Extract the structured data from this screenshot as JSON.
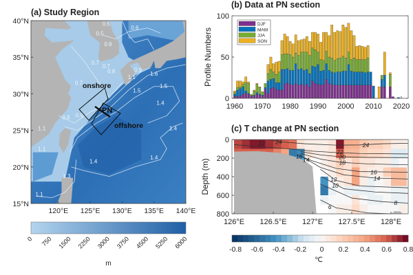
{
  "panel_a": {
    "title": "(a) Study Region",
    "lat_ticks": [
      "40°N",
      "35°N",
      "30°N",
      "25°N",
      "20°N",
      "15°N"
    ],
    "lon_ticks": [
      "120°E",
      "125°E",
      "130°E",
      "135°E",
      "140°E"
    ],
    "labels": {
      "onshore": "onshore",
      "offshore": "offshore",
      "section": "PN"
    },
    "contour_labels": [
      "0.5",
      "0.5",
      "0.6",
      "0.7",
      "0.6",
      "0.7",
      "0.8",
      "0.7",
      "0.9",
      "1.1",
      "1.6",
      "1.5",
      "1.5",
      "1.4",
      "1.4",
      "1.4",
      "1.4",
      "0.9",
      "0.9",
      "1.1",
      "1.1",
      "1.3",
      "1.1"
    ],
    "colorbar": {
      "ticks": [
        "0",
        "750",
        "1500",
        "2250",
        "3000",
        "3750",
        "4500",
        "5250",
        "6000"
      ],
      "unit": "m",
      "range": [
        0,
        6000
      ]
    },
    "colors": {
      "land": "#b4b4b4",
      "shallow": "#b3d4ee",
      "deep": "#1f5fa6"
    }
  },
  "chart_data": [
    {
      "type": "bar",
      "stacked": true,
      "title": "(b) Data at PN section",
      "xlabel": "",
      "ylabel": "Profile Numbers",
      "xlim": [
        1959,
        2022
      ],
      "ylim": [
        0,
        100
      ],
      "x_ticks": [
        "1960",
        "1970",
        "1980",
        "1990",
        "2000",
        "2010",
        "2020"
      ],
      "y_ticks": [
        "0",
        "50",
        "100"
      ],
      "legend_placement": "top-left",
      "categories": [
        1960,
        1961,
        1962,
        1963,
        1964,
        1965,
        1966,
        1967,
        1968,
        1969,
        1970,
        1971,
        1972,
        1973,
        1974,
        1975,
        1976,
        1977,
        1978,
        1979,
        1980,
        1981,
        1982,
        1983,
        1984,
        1985,
        1986,
        1987,
        1988,
        1989,
        1990,
        1991,
        1992,
        1993,
        1994,
        1995,
        1996,
        1997,
        1998,
        1999,
        2000,
        2001,
        2002,
        2003,
        2004,
        2005,
        2006,
        2007,
        2008,
        2009,
        2010,
        2011,
        2012,
        2013,
        2014,
        2015,
        2016,
        2017,
        2018,
        2019
      ],
      "series": [
        {
          "name": "DJF",
          "color": "#7e2f8e",
          "values": [
            3,
            2,
            3,
            5,
            6,
            5,
            2,
            3,
            5,
            4,
            3,
            11,
            6,
            12,
            13,
            11,
            10,
            10,
            17,
            19,
            17,
            16,
            18,
            16,
            17,
            16,
            17,
            14,
            21,
            18,
            17,
            16,
            17,
            23,
            18,
            17,
            16,
            16,
            16,
            16,
            16,
            16,
            16,
            16,
            16,
            16,
            16,
            16,
            16,
            16,
            0,
            0,
            0,
            14,
            14,
            0,
            14,
            2,
            0,
            0
          ]
        },
        {
          "name": "MAM",
          "color": "#0072bd",
          "values": [
            2,
            8,
            9,
            9,
            3,
            1,
            1,
            1,
            2,
            1,
            1,
            2,
            15,
            11,
            11,
            8,
            9,
            25,
            18,
            17,
            17,
            18,
            24,
            19,
            19,
            18,
            18,
            16,
            18,
            20,
            24,
            17,
            17,
            19,
            16,
            15,
            15,
            16,
            16,
            17,
            17,
            25,
            17,
            16,
            16,
            16,
            16,
            15,
            16,
            16,
            15,
            0,
            0,
            9,
            14,
            0,
            0,
            0,
            0,
            1
          ]
        },
        {
          "name": "JJA",
          "color": "#77ac30",
          "values": [
            2,
            3,
            2,
            3,
            10,
            12,
            1,
            5,
            10,
            8,
            4,
            5,
            9,
            12,
            8,
            10,
            13,
            18,
            19,
            18,
            19,
            16,
            13,
            17,
            20,
            22,
            21,
            22,
            22,
            21,
            15,
            14,
            12,
            15,
            16,
            17,
            15,
            16,
            17,
            18,
            16,
            15,
            14,
            17,
            15,
            15,
            15,
            16,
            17,
            0,
            0,
            0,
            0,
            5,
            0,
            0,
            15,
            0,
            0,
            0
          ]
        },
        {
          "name": "SON",
          "color": "#edb120",
          "values": [
            2,
            8,
            7,
            3,
            7,
            2,
            1,
            1,
            1,
            1,
            0,
            0,
            11,
            15,
            10,
            15,
            13,
            17,
            24,
            21,
            16,
            16,
            22,
            18,
            15,
            16,
            19,
            17,
            19,
            21,
            22,
            21,
            34,
            23,
            26,
            40,
            34,
            34,
            32,
            38,
            37,
            35,
            35,
            27,
            16,
            17,
            16,
            15,
            15,
            0,
            0,
            0,
            14,
            0,
            28,
            0,
            2,
            0,
            0,
            0
          ]
        }
      ]
    },
    {
      "type": "heatmap",
      "title": "(c) T change at PN section",
      "xlabel": "",
      "ylabel": "Depth (m)",
      "xlim": [
        126,
        128.22
      ],
      "ylim": [
        800,
        0
      ],
      "x_ticks": [
        "126°E",
        "126.5°E",
        "127°E",
        "127.5°E",
        "128°E"
      ],
      "y_ticks": [
        "0",
        "200",
        "400",
        "600",
        "800"
      ],
      "lon_centers": [
        126.05,
        126.15,
        126.25,
        126.35,
        126.45,
        126.55,
        126.65,
        126.75,
        126.85,
        126.95,
        127.05,
        127.15,
        127.25,
        127.35,
        127.45,
        127.55,
        127.65,
        127.75,
        127.85,
        127.95,
        128.05,
        128.15
      ],
      "depth_bins": [
        [
          0,
          100
        ],
        [
          100,
          200
        ],
        [
          200,
          300
        ],
        [
          300,
          400
        ],
        [
          400,
          500
        ],
        [
          500,
          600
        ],
        [
          600,
          700
        ],
        [
          700,
          800
        ]
      ],
      "values": [
        [
          0.65,
          0.7,
          0.75,
          0.75,
          0.7,
          0.65,
          0.6,
          0.55,
          0.1,
          0.05,
          0.05,
          0.05,
          0.1,
          0.75,
          0.35,
          0.35,
          0.25,
          0.2,
          0.2,
          0.15,
          0.05,
          0.05
        ],
        [
          0.6,
          0.6,
          0.6,
          0.6,
          0.6,
          0.5,
          0.4,
          -0.5,
          -0.45,
          0.1,
          0.05,
          0.05,
          0.1,
          0.6,
          0.3,
          0.3,
          0.2,
          0.15,
          0.15,
          0.1,
          -0.1,
          -0.1
        ],
        [
          null,
          null,
          null,
          null,
          null,
          null,
          null,
          -0.4,
          -0.35,
          null,
          null,
          0.05,
          0.1,
          0.2,
          0.1,
          0.2,
          0.1,
          0.1,
          0.05,
          0.05,
          -0.05,
          0.0
        ],
        [
          null,
          null,
          null,
          null,
          null,
          null,
          null,
          null,
          null,
          null,
          null,
          0.0,
          0.05,
          0.15,
          0.1,
          0.4,
          0.1,
          0.05,
          0.05,
          0.2,
          0.3,
          0.3
        ],
        [
          null,
          null,
          null,
          null,
          null,
          null,
          null,
          null,
          null,
          null,
          null,
          -0.4,
          0.0,
          0.05,
          0.1,
          0.4,
          0.05,
          -0.05,
          0.0,
          0.05,
          0.3,
          0.3
        ],
        [
          null,
          null,
          null,
          null,
          null,
          null,
          null,
          null,
          null,
          null,
          null,
          -0.5,
          -0.05,
          0.0,
          -0.05,
          -0.05,
          -0.05,
          -0.05,
          0.0,
          0.0,
          -0.05,
          -0.05
        ],
        [
          null,
          null,
          null,
          null,
          null,
          null,
          null,
          null,
          null,
          null,
          null,
          -0.05,
          0.0,
          0.0,
          0.0,
          0.1,
          0.0,
          -0.05,
          -0.05,
          0.0,
          -0.05,
          -0.05
        ],
        [
          null,
          null,
          null,
          null,
          null,
          null,
          null,
          null,
          null,
          null,
          null,
          null,
          0.0,
          0.05,
          0.05,
          0.15,
          0.05,
          0.0,
          0.0,
          0.0,
          0.0,
          0.05
        ]
      ],
      "contours": [
        {
          "label": "24",
          "points": [
            [
              126.45,
              0
            ],
            [
              126.6,
              25
            ],
            [
              126.9,
              45
            ],
            [
              127.3,
              60
            ],
            [
              127.6,
              58
            ],
            [
              127.9,
              45
            ],
            [
              128.22,
              40
            ]
          ],
          "label_at": [
            [
              126.57,
              25
            ],
            [
              127.68,
              58
            ]
          ]
        },
        {
          "label": "22",
          "points": [
            [
              126.0,
              55
            ],
            [
              126.3,
              75
            ],
            [
              126.7,
              100
            ],
            [
              127.0,
              125
            ],
            [
              127.3,
              140
            ],
            [
              127.6,
              150
            ],
            [
              128.22,
              155
            ]
          ],
          "label_at": [
            [
              126.35,
              40
            ],
            [
              127.35,
              135
            ]
          ]
        },
        {
          "label": "20",
          "points": [
            [
              126.85,
              130
            ],
            [
              127.1,
              165
            ],
            [
              127.35,
              185
            ],
            [
              127.7,
              192
            ],
            [
              128.22,
              195
            ]
          ],
          "label_at": [
            [
              127.38,
              188
            ]
          ]
        },
        {
          "label": "18",
          "points": [
            [
              126.85,
              150
            ],
            [
              127.1,
              210
            ],
            [
              127.35,
              245
            ],
            [
              127.7,
              262
            ],
            [
              128.22,
              272
            ]
          ],
          "label_at": [
            [
              127.38,
              248
            ]
          ]
        },
        {
          "label": "16",
          "points": [
            [
              126.8,
              165
            ],
            [
              127.0,
              230
            ],
            [
              127.3,
              310
            ],
            [
              127.6,
              345
            ],
            [
              128.22,
              352
            ]
          ],
          "label_at": [
            [
              126.83,
              180
            ],
            [
              127.78,
              350
            ]
          ]
        },
        {
          "label": "14",
          "points": [
            [
              126.9,
              200
            ],
            [
              127.1,
              300
            ],
            [
              127.4,
              380
            ],
            [
              127.8,
              415
            ],
            [
              128.22,
              425
            ]
          ],
          "label_at": [
            [
              126.92,
              220
            ],
            [
              127.82,
              418
            ]
          ]
        },
        {
          "label": "12",
          "points": [
            [
              127.1,
              320
            ],
            [
              127.3,
              440
            ],
            [
              127.6,
              500
            ],
            [
              128.22,
              520
            ]
          ],
          "label_at": [
            [
              127.27,
              430
            ]
          ]
        },
        {
          "label": "10",
          "points": [
            [
              127.12,
              400
            ],
            [
              127.4,
              530
            ],
            [
              127.8,
              565
            ],
            [
              128.22,
              580
            ]
          ],
          "label_at": [
            [
              127.29,
              495
            ]
          ]
        },
        {
          "label": "8",
          "points": [
            [
              127.1,
              480
            ],
            [
              127.5,
              630
            ],
            [
              127.9,
              670
            ],
            [
              128.22,
              685
            ]
          ],
          "label_at": [
            [
              128.06,
              682
            ]
          ]
        },
        {
          "label": "6",
          "points": [
            [
              127.1,
              650
            ],
            [
              127.3,
              735
            ],
            [
              127.7,
              790
            ],
            [
              128.0,
              800
            ]
          ],
          "label_at": [
            [
              127.22,
              725
            ]
          ]
        }
      ],
      "colorbar": {
        "ticks": [
          "-0.8",
          "-0.6",
          "-0.4",
          "-0.2",
          "0",
          "0.2",
          "0.4",
          "0.6",
          "0.8"
        ],
        "unit": "℃",
        "range": [
          -0.8,
          0.8
        ],
        "colormap": "RdBu_r"
      },
      "land_color": "#b4b4b4"
    }
  ]
}
